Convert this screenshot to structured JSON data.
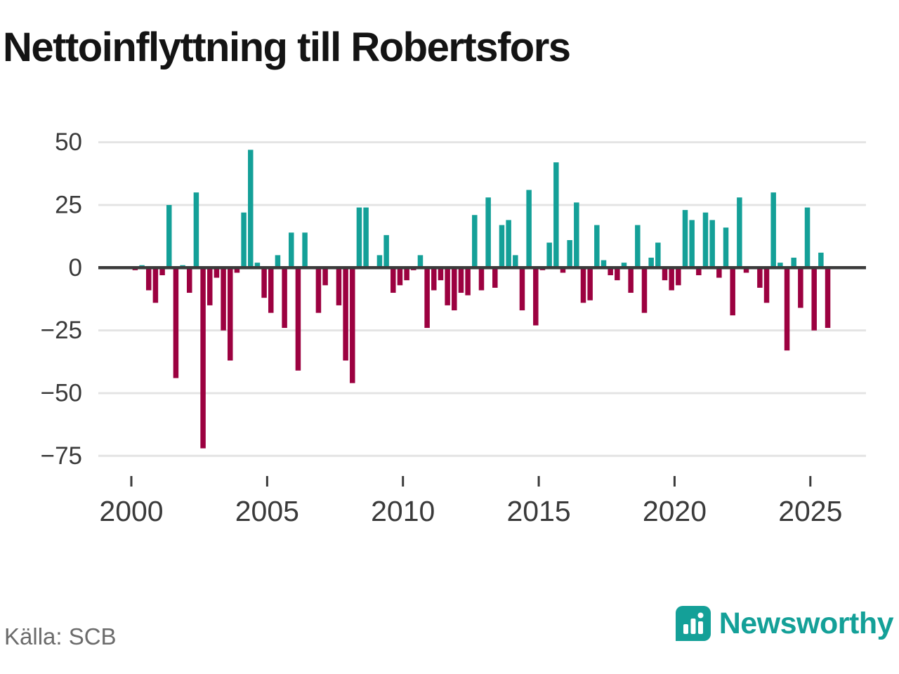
{
  "title": "Nettoinflyttning till Robertsfors",
  "source": "Källa: SCB",
  "branding": {
    "name": "Newsworthy"
  },
  "colors": {
    "positive": "#14a098",
    "negative": "#9c0140",
    "zero_line": "#3b3b3b",
    "gridline": "#e4e4e4",
    "axis_text": "#3a3a3a",
    "title_text": "#141414",
    "source_text": "#6b6b6b",
    "brand": "#14a098"
  },
  "chart_data": {
    "type": "bar",
    "title": "Nettoinflyttning till Robertsfors",
    "xlabel": "",
    "ylabel": "",
    "x_unit": "quarter",
    "grid": true,
    "legend": false,
    "ylim": [
      -75,
      50
    ],
    "yticks": [
      50,
      25,
      0,
      -25,
      -50,
      -75
    ],
    "ytick_labels": [
      "50",
      "25",
      "0",
      "−25",
      "−50",
      "−75"
    ],
    "xtick_years": [
      2000,
      2005,
      2010,
      2015,
      2020,
      2025
    ],
    "positive_color": "#14a098",
    "negative_color": "#9c0140",
    "categories": [
      "2000Q1",
      "2000Q2",
      "2000Q3",
      "2000Q4",
      "2001Q1",
      "2001Q2",
      "2001Q3",
      "2001Q4",
      "2002Q1",
      "2002Q2",
      "2002Q3",
      "2002Q4",
      "2003Q1",
      "2003Q2",
      "2003Q3",
      "2003Q4",
      "2004Q1",
      "2004Q2",
      "2004Q3",
      "2004Q4",
      "2005Q1",
      "2005Q2",
      "2005Q3",
      "2005Q4",
      "2006Q1",
      "2006Q2",
      "2006Q3",
      "2006Q4",
      "2007Q1",
      "2007Q2",
      "2007Q3",
      "2007Q4",
      "2008Q1",
      "2008Q2",
      "2008Q3",
      "2008Q4",
      "2009Q1",
      "2009Q2",
      "2009Q3",
      "2009Q4",
      "2010Q1",
      "2010Q2",
      "2010Q3",
      "2010Q4",
      "2011Q1",
      "2011Q2",
      "2011Q3",
      "2011Q4",
      "2012Q1",
      "2012Q2",
      "2012Q3",
      "2012Q4",
      "2013Q1",
      "2013Q2",
      "2013Q3",
      "2013Q4",
      "2014Q1",
      "2014Q2",
      "2014Q3",
      "2014Q4",
      "2015Q1",
      "2015Q2",
      "2015Q3",
      "2015Q4",
      "2016Q1",
      "2016Q2",
      "2016Q3",
      "2016Q4",
      "2017Q1",
      "2017Q2",
      "2017Q3",
      "2017Q4",
      "2018Q1",
      "2018Q2",
      "2018Q3",
      "2018Q4",
      "2019Q1",
      "2019Q2",
      "2019Q3",
      "2019Q4",
      "2020Q1",
      "2020Q2",
      "2020Q3",
      "2020Q4",
      "2021Q1",
      "2021Q2",
      "2021Q3",
      "2021Q4",
      "2022Q1",
      "2022Q2",
      "2022Q3",
      "2022Q4",
      "2023Q1",
      "2023Q2",
      "2023Q3",
      "2023Q4",
      "2024Q1",
      "2024Q2",
      "2024Q3",
      "2024Q4",
      "2025Q1",
      "2025Q2",
      "2025Q3"
    ],
    "values": [
      -1,
      1,
      -9,
      -14,
      -3,
      25,
      -44,
      1,
      -10,
      30,
      -72,
      -15,
      -4,
      -25,
      -37,
      -2,
      22,
      47,
      2,
      -12,
      -18,
      5,
      -24,
      14,
      -41,
      14,
      0,
      -18,
      -7,
      0,
      -15,
      -37,
      -46,
      24,
      24,
      0,
      5,
      13,
      -10,
      -7,
      -5,
      -1,
      5,
      -24,
      -9,
      -5,
      -15,
      -17,
      -10,
      -11,
      21,
      -9,
      28,
      -8,
      17,
      19,
      5,
      -17,
      31,
      -23,
      -1,
      10,
      42,
      -2,
      11,
      26,
      -14,
      -13,
      17,
      3,
      -3,
      -5,
      2,
      -10,
      17,
      -18,
      4,
      10,
      -5,
      -9,
      -7,
      23,
      19,
      -3,
      22,
      19,
      -4,
      16,
      -19,
      28,
      -2,
      0,
      -8,
      -14,
      30,
      2,
      -33,
      4,
      -16,
      24,
      -25,
      6,
      -24
    ]
  }
}
